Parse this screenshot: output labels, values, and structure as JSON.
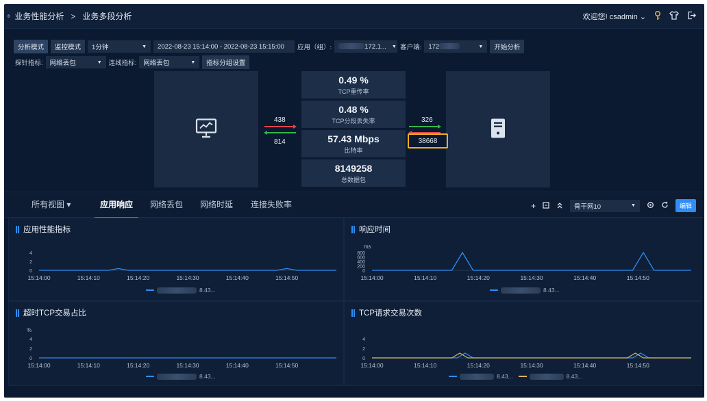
{
  "breadcrumb": {
    "home": "♠",
    "level1": "业务性能分析",
    "sep": ">",
    "level2": "业务多段分析"
  },
  "user": {
    "welcome": "欢迎您! csadmin",
    "caret": "⌄"
  },
  "controls": {
    "mode_analysis": "分析模式",
    "mode_monitor": "监控模式",
    "interval": "1分钟",
    "time_range": "2022-08-23 15:14:00 - 2022-08-23 15:15:00",
    "app_label": "应用（组）:",
    "app_value": "172.1...",
    "client_label": "客户端:",
    "client_value": "172",
    "start_button": "开始分析",
    "probe_label": "探针指标:",
    "probe_value": "网络丢包",
    "link_label": "连线指标:",
    "link_value": "网络丢包",
    "group_button": "指标分组设置"
  },
  "topology": {
    "left_in": "438",
    "left_out": "814",
    "right_in": "326",
    "right_out": "38668",
    "metrics": [
      {
        "value": "0.49 %",
        "label": "TCP重传率"
      },
      {
        "value": "0.48 %",
        "label": "TCP分段丢失率"
      },
      {
        "value": "57.43 Mbps",
        "label": "比特率"
      },
      {
        "value": "8149258",
        "label": "总数据包"
      }
    ]
  },
  "tabs": {
    "all_views": "所有视图 ▾",
    "items": [
      "应用响应",
      "网络丢包",
      "网络时延",
      "连接失败率"
    ],
    "active": "应用响应",
    "dropdown": "骨干网10",
    "edit": "编辑"
  },
  "panels": {
    "app_perf": {
      "title": "应用性能指标",
      "unit": "",
      "legend": "8.43..."
    },
    "resp_time": {
      "title": "响应时间",
      "unit": "ms",
      "legend": "8.43..."
    },
    "timeout_tcp": {
      "title": "超时TCP交易占比",
      "unit": "%",
      "legend": "8.43..."
    },
    "tcp_req": {
      "title": "TCP请求交易次数",
      "unit": "",
      "legend_a": "8.43...",
      "legend_b": "8.43..."
    }
  },
  "chart_data": [
    {
      "type": "line",
      "title": "应用性能指标",
      "x": [
        "15:14:00",
        "15:14:10",
        "15:14:20",
        "15:14:30",
        "15:14:40",
        "15:14:50"
      ],
      "y_ticks": [
        "0",
        "2",
        "4"
      ],
      "series": [
        {
          "name": "8.43...",
          "color": "#2f8df5",
          "points": [
            [
              0,
              0
            ],
            [
              14,
              0
            ],
            [
              16,
              0.4
            ],
            [
              18,
              0
            ],
            [
              48,
              0
            ],
            [
              50,
              0.4
            ],
            [
              52,
              0
            ],
            [
              60,
              0
            ]
          ]
        }
      ]
    },
    {
      "type": "line",
      "title": "响应时间",
      "x": [
        "15:14:00",
        "15:14:10",
        "15:14:20",
        "15:14:30",
        "15:14:40",
        "15:14:50"
      ],
      "y_ticks": [
        "0",
        "200",
        "400",
        "600",
        "800"
      ],
      "series": [
        {
          "name": "8.43...",
          "color": "#2f8df5",
          "points": [
            [
              0,
              0
            ],
            [
              15,
              0
            ],
            [
              17,
              800
            ],
            [
              19,
              0
            ],
            [
              49,
              0
            ],
            [
              51,
              800
            ],
            [
              53,
              0
            ],
            [
              60,
              0
            ]
          ]
        }
      ]
    },
    {
      "type": "line",
      "title": "超时TCP交易占比",
      "x": [
        "15:14:00",
        "15:14:10",
        "15:14:20",
        "15:14:30",
        "15:14:40",
        "15:14:50"
      ],
      "y_ticks": [
        "0",
        "2",
        "4"
      ],
      "series": [
        {
          "name": "8.43...",
          "color": "#2f8df5",
          "points": [
            [
              0,
              0
            ],
            [
              60,
              0
            ]
          ]
        }
      ]
    },
    {
      "type": "line",
      "title": "TCP请求交易次数",
      "x": [
        "15:14:00",
        "15:14:10",
        "15:14:20",
        "15:14:30",
        "15:14:40",
        "15:14:50"
      ],
      "y_ticks": [
        "0",
        "2",
        "4"
      ],
      "series": [
        {
          "name": "8.43...",
          "color": "#2f8df5",
          "points": [
            [
              0,
              0
            ],
            [
              16,
              0
            ],
            [
              17.5,
              1
            ],
            [
              19,
              0
            ],
            [
              49,
              0
            ],
            [
              50.5,
              1
            ],
            [
              52,
              0
            ],
            [
              60,
              0
            ]
          ]
        },
        {
          "name": "8.43...",
          "color": "#d9b45a",
          "points": [
            [
              0,
              0
            ],
            [
              15,
              0
            ],
            [
              16.5,
              1
            ],
            [
              18,
              0
            ],
            [
              48,
              0
            ],
            [
              49.5,
              1
            ],
            [
              51,
              0
            ],
            [
              60,
              0
            ]
          ]
        }
      ]
    }
  ]
}
